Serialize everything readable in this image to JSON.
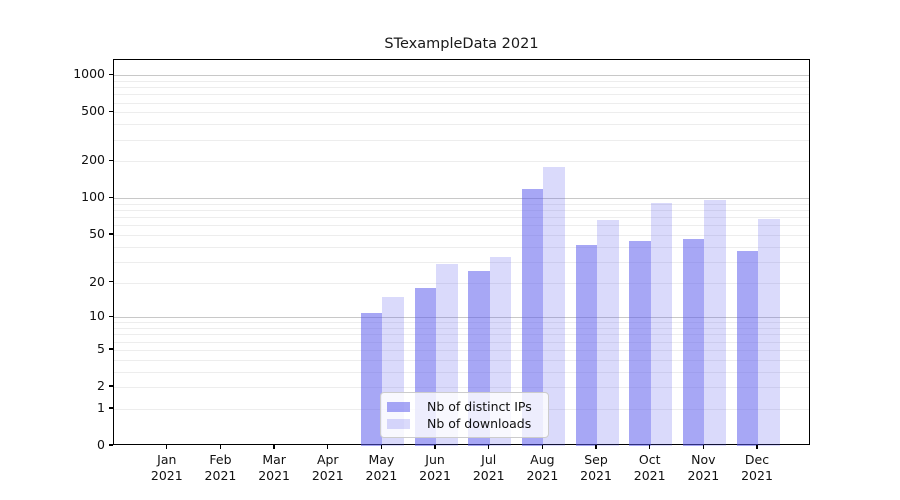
{
  "chart_data": {
    "type": "bar",
    "title": "STexampleData 2021",
    "categories": [
      "Jan 2021",
      "Feb 2021",
      "Mar 2021",
      "Apr 2021",
      "May 2021",
      "Jun 2021",
      "Jul 2021",
      "Aug 2021",
      "Sep 2021",
      "Oct 2021",
      "Nov 2021",
      "Dec 2021"
    ],
    "series": [
      {
        "name": "Nb of distinct IPs",
        "color": "rgba(88,88,236,0.53)",
        "values": [
          0,
          0,
          0,
          0,
          11,
          18,
          25,
          120,
          41,
          45,
          46,
          37
        ]
      },
      {
        "name": "Nb of downloads",
        "color": "rgba(88,88,236,0.22)",
        "values": [
          0,
          0,
          0,
          0,
          15,
          29,
          33,
          180,
          66,
          92,
          97,
          68
        ]
      }
    ],
    "yscale": "log10(value+1)",
    "yticks": [
      0,
      1,
      2,
      5,
      10,
      20,
      50,
      100,
      200,
      500,
      1000
    ],
    "ylim": [
      0,
      1320
    ],
    "xlabel": "",
    "ylabel": "",
    "grid": true,
    "grid_major": [
      10,
      100,
      1000
    ],
    "grid_minor": [
      1,
      2,
      3,
      4,
      5,
      6,
      7,
      8,
      9,
      20,
      30,
      40,
      50,
      60,
      70,
      80,
      90,
      200,
      300,
      400,
      500,
      600,
      700,
      800,
      900
    ],
    "legend_position": "lower center",
    "colors": {
      "bar_dark": "rgba(88,88,236,0.53)",
      "bar_light": "rgba(88,88,236,0.22)",
      "grid_major": "#c8c8c8",
      "grid_minor": "#ededed",
      "spine": "#000000",
      "text": "#111111"
    }
  }
}
